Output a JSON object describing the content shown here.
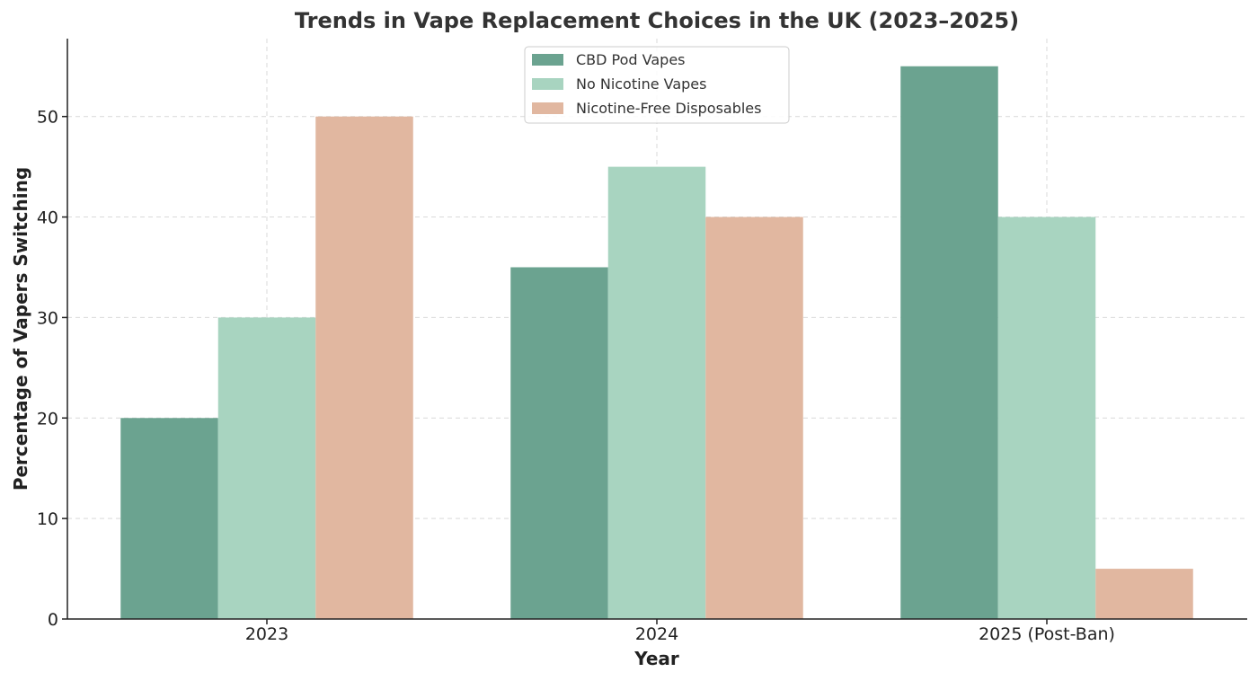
{
  "chart_data": {
    "type": "bar",
    "title": "Trends in Vape Replacement Choices in the UK (2023–2025)",
    "xlabel": "Year",
    "ylabel": "Percentage of Vapers Switching",
    "categories": [
      "2023",
      "2024",
      "2025 (Post-Ban)"
    ],
    "series": [
      {
        "name": "CBD Pod Vapes",
        "color": "#6ba390",
        "values": [
          20,
          35,
          55
        ]
      },
      {
        "name": "No Nicotine Vapes",
        "color": "#a8d4c0",
        "values": [
          30,
          45,
          40
        ]
      },
      {
        "name": "Nicotine-Free Disposables",
        "color": "#e1b7a0",
        "values": [
          50,
          40,
          5
        ]
      }
    ],
    "ylim": [
      0,
      57.75
    ],
    "yticks": [
      0,
      10,
      20,
      30,
      40,
      50
    ],
    "grid": true,
    "legend_position": "top-center"
  }
}
